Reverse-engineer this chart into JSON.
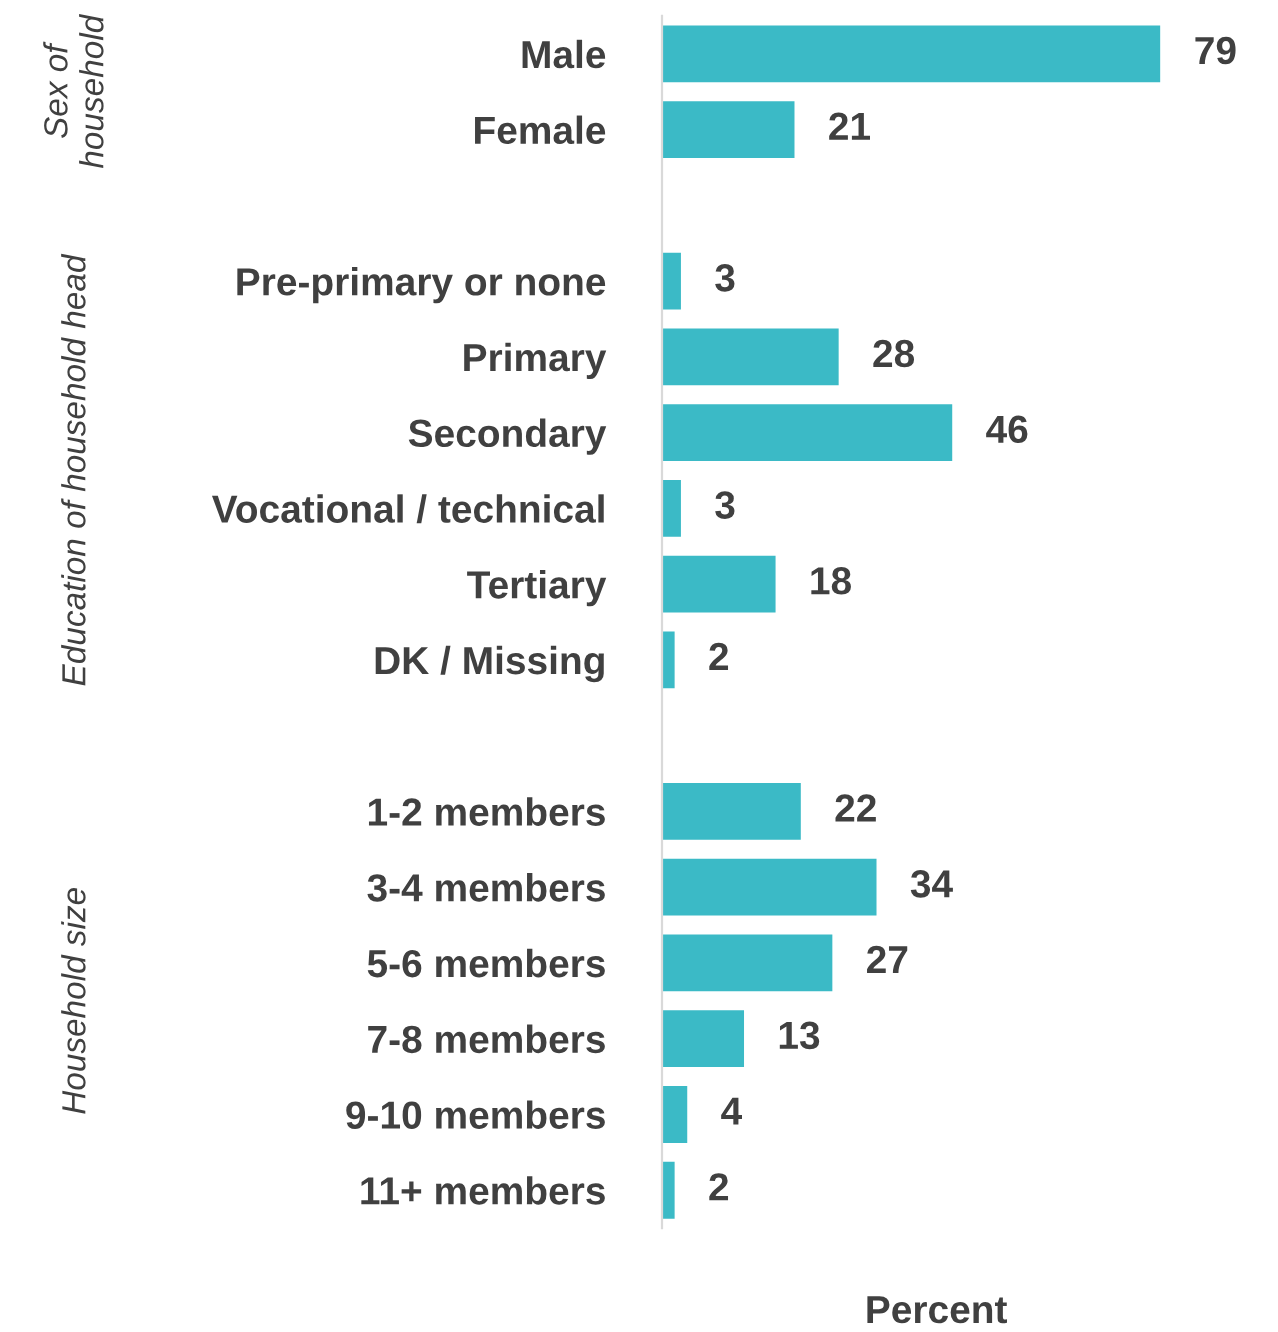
{
  "chart_data": {
    "type": "bar",
    "orientation": "horizontal",
    "xlabel": "Percent",
    "categories": [
      "Male",
      "Female",
      null,
      "Pre-primary or none",
      "Primary",
      "Secondary",
      "Vocational / technical",
      "Tertiary",
      "DK / Missing",
      null,
      "1-2 members",
      "3-4 members",
      "5-6 members",
      "7-8 members",
      "9-10 members",
      "11+ members"
    ],
    "values": [
      79,
      21,
      null,
      3,
      28,
      46,
      3,
      18,
      2,
      null,
      22,
      34,
      27,
      13,
      4,
      2
    ],
    "color": "#3bbac6",
    "data_labels": true,
    "annotations": [
      "Sex of household",
      "Education of household head",
      "Household size"
    ],
    "grid": false,
    "legend": false,
    "tick_labels": "y"
  }
}
